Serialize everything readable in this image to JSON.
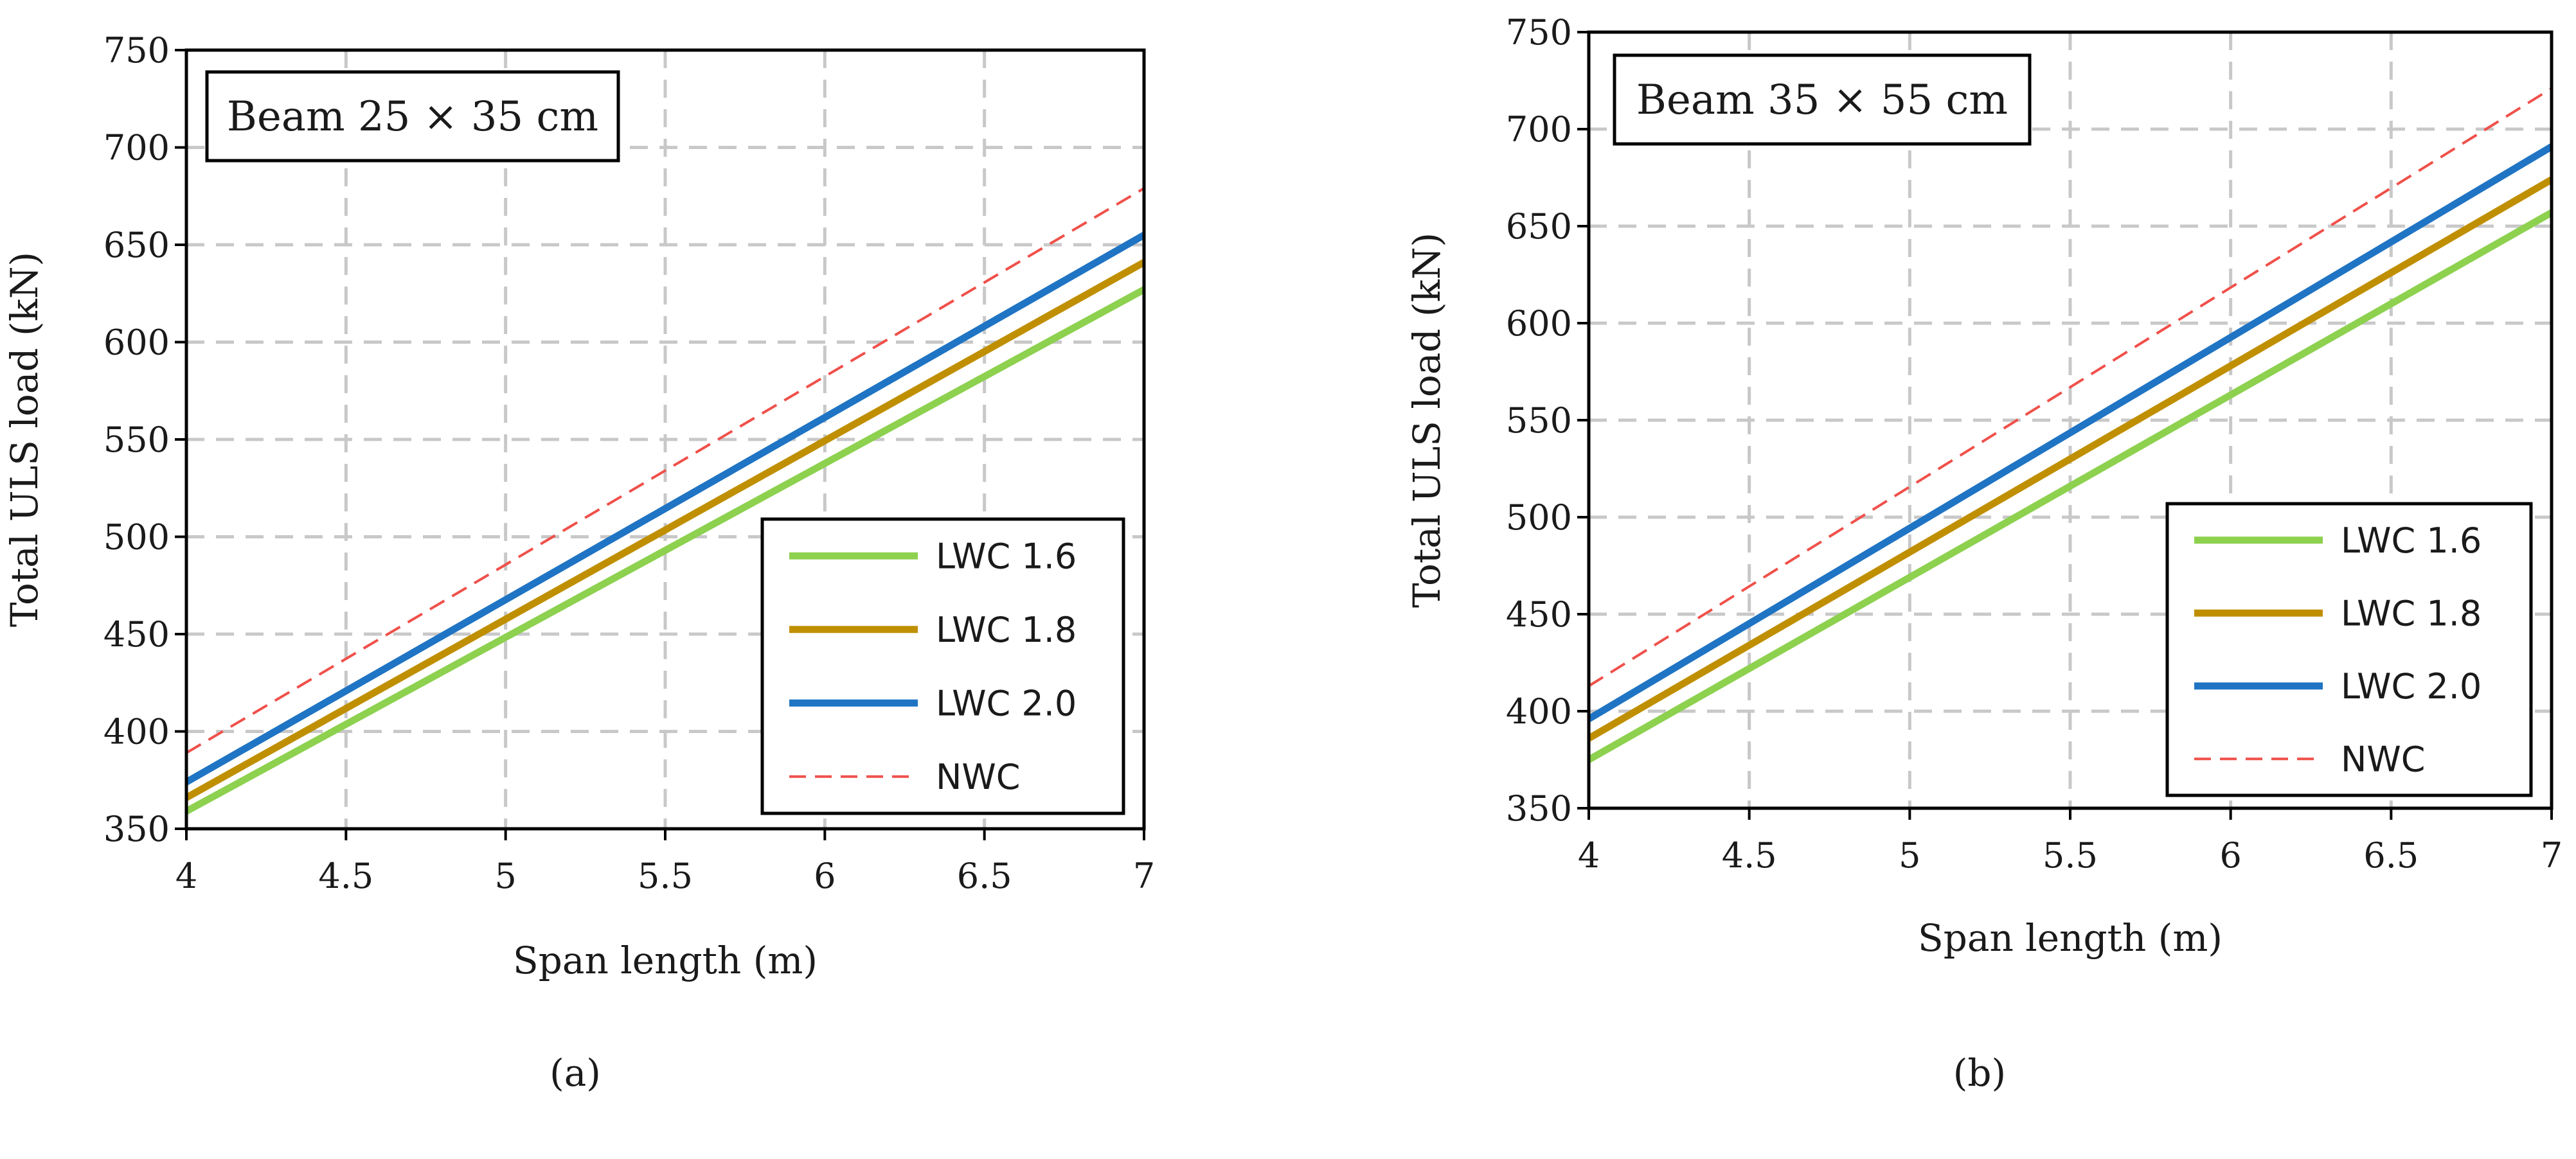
{
  "figure": {
    "panels": [
      "(a)",
      "(b)"
    ]
  },
  "series_styles": {
    "LWC 1.6": {
      "color": "#8dd14f",
      "dashed": false
    },
    "LWC 1.8": {
      "color": "#bf8f00",
      "dashed": false
    },
    "LWC 2.0": {
      "color": "#1f74c4",
      "dashed": false
    },
    "NWC": {
      "color": "#f0504a",
      "dashed": true
    }
  },
  "chart_data": [
    {
      "type": "line",
      "title": "Beam 25 × 35 cm",
      "caption": "(a)",
      "xlabel": "Span length (m)",
      "ylabel": "Total ULS load (kN)",
      "xlim": [
        4,
        7
      ],
      "ylim": [
        350,
        750
      ],
      "xticks": [
        4,
        4.5,
        5,
        5.5,
        6,
        6.5,
        7
      ],
      "xtick_labels": [
        "4",
        "4.5",
        "5",
        "5.5",
        "6",
        "6.5",
        "7"
      ],
      "yticks": [
        350,
        400,
        450,
        500,
        550,
        600,
        650,
        700,
        750
      ],
      "ytick_labels": [
        "350",
        "400",
        "450",
        "500",
        "550",
        "600",
        "650",
        "700",
        "750"
      ],
      "grid": true,
      "legend_position": "bottom-right",
      "legend": [
        "LWC 1.6",
        "LWC 1.8",
        "LWC 2.0",
        "NWC"
      ],
      "series": [
        {
          "name": "LWC 1.6",
          "x": [
            4,
            7
          ],
          "y": [
            359,
            627
          ]
        },
        {
          "name": "LWC 1.8",
          "x": [
            4,
            7
          ],
          "y": [
            366,
            641
          ]
        },
        {
          "name": "LWC 2.0",
          "x": [
            4,
            7
          ],
          "y": [
            374,
            655
          ]
        },
        {
          "name": "NWC",
          "x": [
            4,
            7
          ],
          "y": [
            389,
            679
          ]
        }
      ]
    },
    {
      "type": "line",
      "title": "Beam 35 × 55 cm",
      "caption": "(b)",
      "xlabel": "Span length (m)",
      "ylabel": "Total ULS load (kN)",
      "xlim": [
        4,
        7
      ],
      "ylim": [
        350,
        750
      ],
      "xticks": [
        4,
        4.5,
        5,
        5.5,
        6,
        6.5,
        7
      ],
      "xtick_labels": [
        "4",
        "4.5",
        "5",
        "5.5",
        "6",
        "6.5",
        "7"
      ],
      "yticks": [
        350,
        400,
        450,
        500,
        550,
        600,
        650,
        700,
        750
      ],
      "ytick_labels": [
        "350",
        "400",
        "450",
        "500",
        "550",
        "600",
        "650",
        "700",
        "750"
      ],
      "grid": true,
      "legend_position": "bottom-right",
      "legend": [
        "LWC 1.6",
        "LWC 1.8",
        "LWC 2.0",
        "NWC"
      ],
      "series": [
        {
          "name": "LWC 1.6",
          "x": [
            4,
            7
          ],
          "y": [
            375,
            657
          ]
        },
        {
          "name": "LWC 1.8",
          "x": [
            4,
            7
          ],
          "y": [
            386,
            674
          ]
        },
        {
          "name": "LWC 2.0",
          "x": [
            4,
            7
          ],
          "y": [
            396,
            691
          ]
        },
        {
          "name": "NWC",
          "x": [
            4,
            7
          ],
          "y": [
            413,
            721
          ]
        }
      ]
    }
  ]
}
